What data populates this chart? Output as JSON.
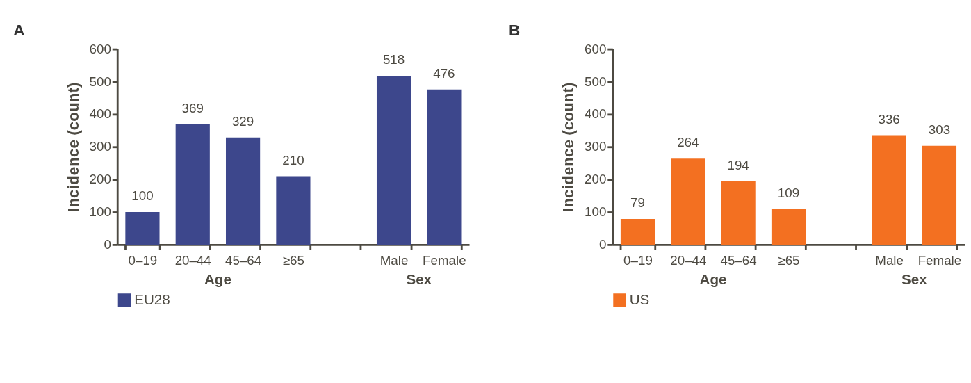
{
  "chart_data": [
    {
      "type": "bar",
      "title": "A",
      "ylabel": "Incidence (count)",
      "categories": [
        "0–19",
        "20–44",
        "45–64",
        "≥65",
        null,
        "Male",
        "Female"
      ],
      "series": [
        {
          "name": "EU28",
          "color": "#3d478c",
          "values": [
            100,
            369,
            329,
            210,
            null,
            518,
            476
          ]
        }
      ],
      "ylim": [
        0,
        600
      ],
      "yticks": [
        0,
        100,
        200,
        300,
        400,
        500,
        600
      ],
      "grid": false,
      "legend": "bottom",
      "data_labels": true,
      "annotations": [
        "Age",
        "Sex"
      ]
    },
    {
      "type": "bar",
      "title": "B",
      "ylabel": "Incidence (count)",
      "categories": [
        "0–19",
        "20–44",
        "45–64",
        "≥65",
        null,
        "Male",
        "Female"
      ],
      "series": [
        {
          "name": "US",
          "color": "#f37021",
          "values": [
            79,
            264,
            194,
            109,
            null,
            336,
            303
          ]
        }
      ],
      "ylim": [
        0,
        600
      ],
      "yticks": [
        0,
        100,
        200,
        300,
        400,
        500,
        600
      ],
      "grid": false,
      "legend": "bottom",
      "data_labels": true,
      "annotations": [
        "Age",
        "Sex"
      ]
    }
  ]
}
